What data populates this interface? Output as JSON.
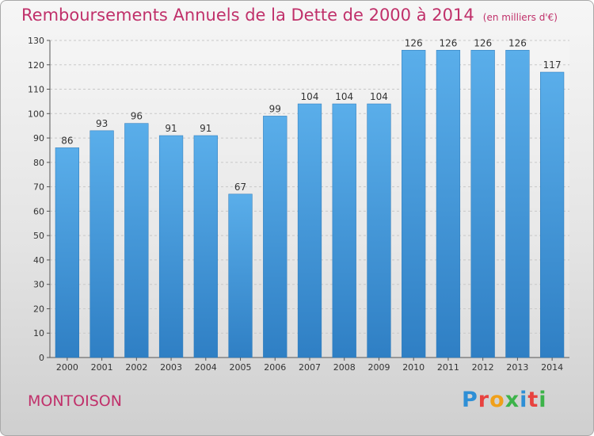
{
  "chart_data": {
    "type": "bar",
    "title": "Remboursements Annuels de la Dette de 2000 à 2014",
    "subtitle": "(en milliers d'€)",
    "categories": [
      "2000",
      "2001",
      "2002",
      "2003",
      "2004",
      "2005",
      "2006",
      "2007",
      "2008",
      "2009",
      "2010",
      "2011",
      "2012",
      "2013",
      "2014"
    ],
    "values": [
      86,
      93,
      96,
      91,
      91,
      67,
      99,
      104,
      104,
      104,
      126,
      126,
      126,
      126,
      117
    ],
    "yticks": [
      0,
      10,
      20,
      30,
      40,
      50,
      60,
      70,
      80,
      90,
      100,
      110,
      120,
      130
    ],
    "ylim": [
      0,
      130
    ],
    "grid": true,
    "colors": {
      "bar_light": "#5aaeea",
      "bar_dark": "#2f7fc4",
      "title": "#c0306a"
    }
  },
  "footer": {
    "commune": "MONTOISON",
    "logo_text": "Proxiti",
    "logo_colors": [
      "#2e8fd6",
      "#e8423f",
      "#f0a01a",
      "#3db34a",
      "#2e8fd6",
      "#e8423f",
      "#3db34a"
    ]
  }
}
